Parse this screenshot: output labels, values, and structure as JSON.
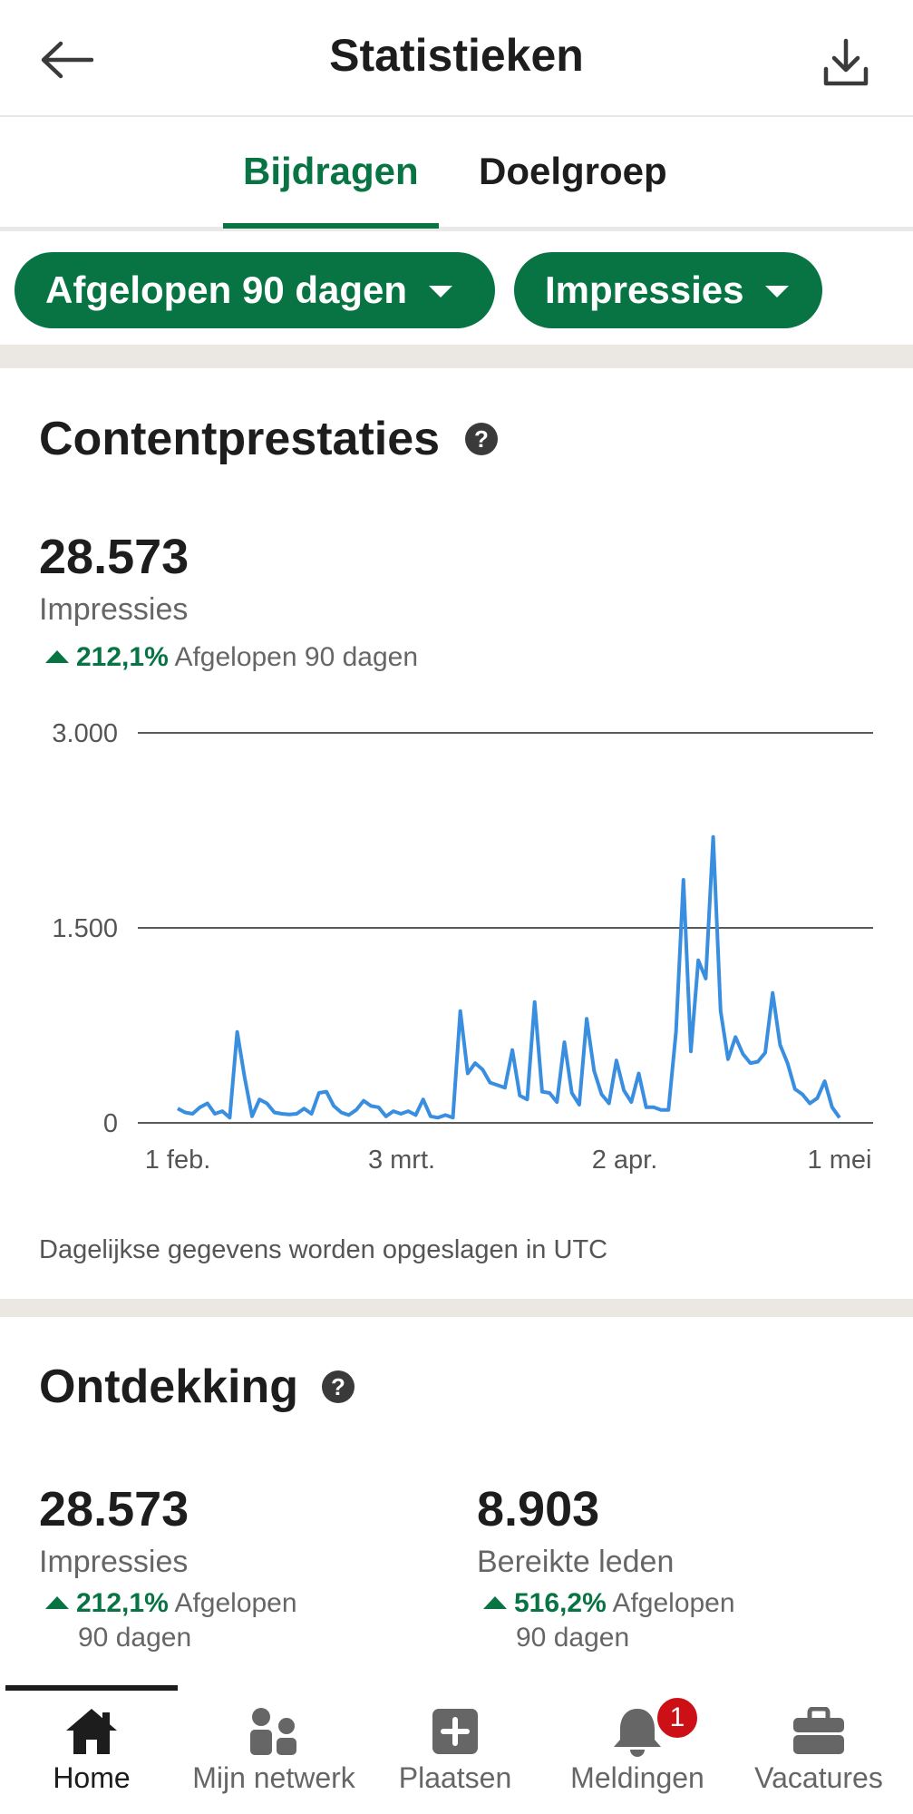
{
  "header": {
    "title": "Statistieken",
    "back_icon": "arrow-left-icon",
    "download_icon": "download-icon"
  },
  "tabs": [
    {
      "label": "Bijdragen",
      "active": true
    },
    {
      "label": "Doelgroep",
      "active": false
    }
  ],
  "filters": {
    "range": "Afgelopen 90 dagen",
    "metric": "Impressies"
  },
  "content_performance": {
    "title": "Contentprestaties",
    "help": "?",
    "value": "28.573",
    "label": "Impressies",
    "change_pct": "212,1%",
    "change_period": "Afgelopen 90 dagen",
    "footnote": "Dagelijkse gegevens worden opgeslagen in UTC"
  },
  "chart_data": {
    "type": "line",
    "x_tick_labels": [
      "1 feb.",
      "3 mrt.",
      "2 apr.",
      "1 mei"
    ],
    "y_tick_labels": [
      "3.000",
      "1.500",
      "0"
    ],
    "ylim": [
      0,
      3000
    ],
    "grid": true,
    "color": "#3a8ee0",
    "values": [
      110,
      80,
      70,
      120,
      150,
      70,
      90,
      40,
      700,
      350,
      50,
      180,
      150,
      80,
      70,
      65,
      70,
      110,
      70,
      230,
      240,
      130,
      80,
      60,
      100,
      170,
      130,
      120,
      50,
      90,
      70,
      90,
      60,
      180,
      50,
      40,
      60,
      40,
      860,
      380,
      460,
      410,
      310,
      290,
      270,
      560,
      210,
      180,
      930,
      240,
      230,
      160,
      620,
      230,
      140,
      800,
      400,
      220,
      150,
      480,
      250,
      160,
      380,
      120,
      120,
      100,
      100,
      700,
      1870,
      550,
      1250,
      1110,
      2200,
      860,
      490,
      660,
      530,
      460,
      470,
      540,
      1000,
      600,
      460,
      260,
      220,
      150,
      190,
      320,
      120,
      40
    ]
  },
  "discovery": {
    "title": "Ontdekking",
    "help": "?",
    "metrics": [
      {
        "value": "28.573",
        "label": "Impressies",
        "change_pct": "212,1%",
        "period_line1": "Afgelopen",
        "period_line2": "90 dagen"
      },
      {
        "value": "8.903",
        "label": "Bereikte leden",
        "change_pct": "516,2%",
        "period_line1": "Afgelopen",
        "period_line2": "90 dagen"
      }
    ]
  },
  "bottom_nav": {
    "items": [
      {
        "label": "Home",
        "icon": "home-icon",
        "active": true
      },
      {
        "label": "Mijn netwerk",
        "icon": "network-icon",
        "active": false
      },
      {
        "label": "Plaatsen",
        "icon": "post-plus-icon",
        "active": false
      },
      {
        "label": "Meldingen",
        "icon": "bell-icon",
        "active": false
      },
      {
        "label": "Vacatures",
        "icon": "briefcase-icon",
        "active": false
      }
    ],
    "notification_count": "1"
  },
  "colors": {
    "accent": "#087443",
    "badge": "#cc1016",
    "chart_line": "#3a8ee0"
  }
}
